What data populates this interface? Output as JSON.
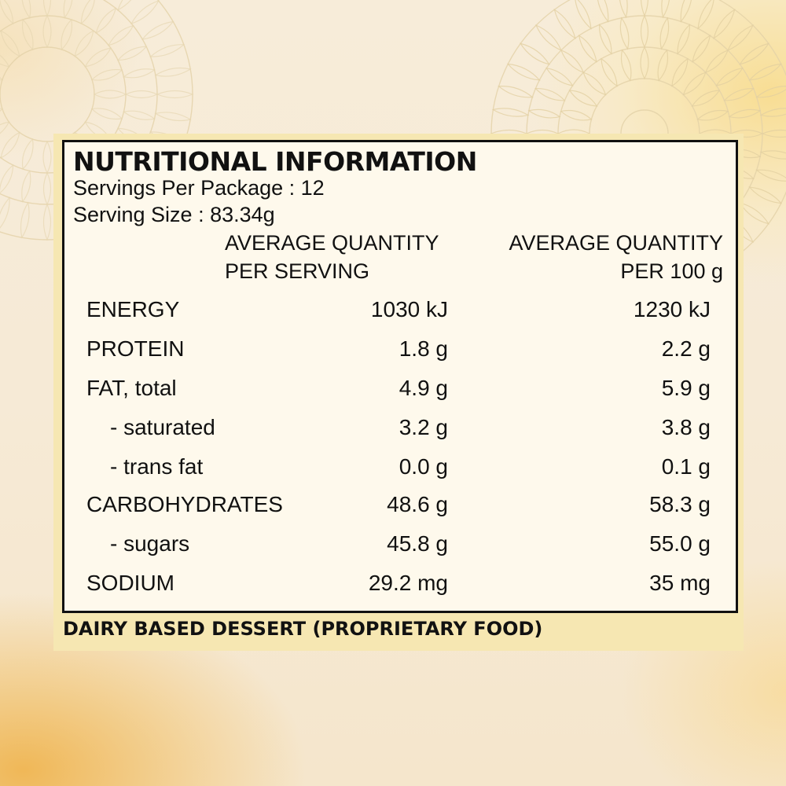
{
  "panel": {
    "title": "NUTRITIONAL INFORMATION",
    "servings_per_package": "Servings Per Package : 12",
    "serving_size": "Serving Size : 83.34g",
    "col1_head_line1": "AVERAGE QUANTITY",
    "col1_head_line2": "PER SERVING",
    "col2_head_line1": "AVERAGE QUANTITY",
    "col2_head_line2": "PER 100 g",
    "rows": [
      {
        "name": "ENERGY",
        "per_serving": "1030 kJ",
        "per_100g": "1230 kJ"
      },
      {
        "name": "PROTEIN",
        "per_serving": "1.8 g",
        "per_100g": "2.2 g"
      },
      {
        "name": "FAT, total",
        "per_serving": "4.9 g",
        "per_100g": "5.9 g"
      },
      {
        "name": "- saturated",
        "per_serving": "3.2 g",
        "per_100g": "3.8 g"
      },
      {
        "name": "- trans fat",
        "per_serving": "0.0 g",
        "per_100g": "0.1 g"
      },
      {
        "name": "CARBOHYDRATES",
        "per_serving": "48.6 g",
        "per_100g": "58.3 g"
      },
      {
        "name": "- sugars",
        "per_serving": "45.8 g",
        "per_100g": "55.0 g"
      },
      {
        "name": "SODIUM",
        "per_serving": "29.2 mg",
        "per_100g": "35 mg"
      }
    ],
    "footer": "DAIRY BASED DESSERT (PROPRIETARY FOOD)"
  },
  "colors": {
    "label_band": "#f6e7b2",
    "border": "#111111",
    "background": "#f7ecd9",
    "watercolor_orange": "#eea830"
  },
  "icons": {
    "decoration": "mandala-ornament"
  }
}
